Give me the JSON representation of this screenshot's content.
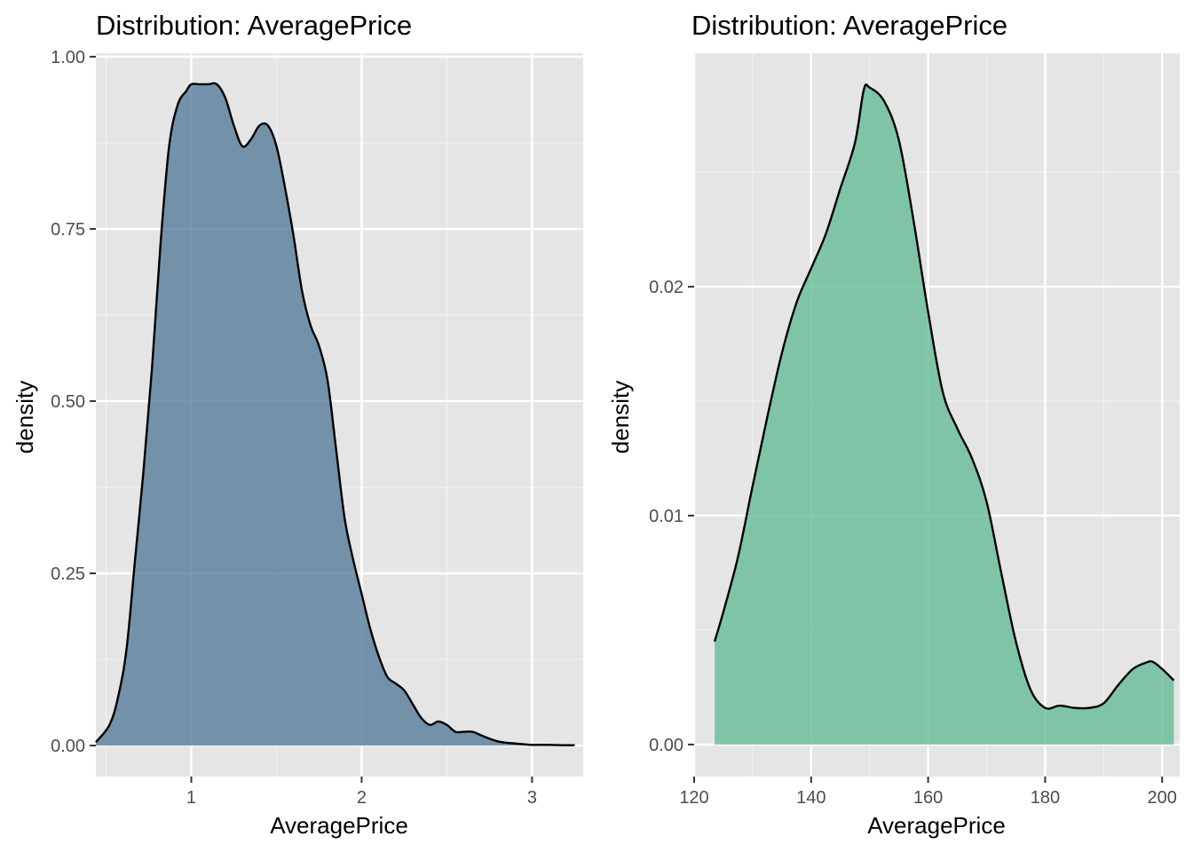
{
  "chart_data": [
    {
      "type": "area",
      "title": "Distribution: AveragePrice",
      "xlabel": "AveragePrice",
      "ylabel": "density",
      "xlim": [
        0.44,
        3.3
      ],
      "ylim": [
        -0.045,
        1.005
      ],
      "x_ticks": [
        1,
        2,
        3
      ],
      "x_tick_labels": [
        "1",
        "2",
        "3"
      ],
      "y_ticks": [
        0,
        0.25,
        0.5,
        0.75,
        1
      ],
      "y_tick_labels": [
        "0.00",
        "0.25",
        "0.50",
        "0.75",
        "1.00"
      ],
      "grid": true,
      "fill_color": "#4C7494",
      "fill_opacity": 0.75,
      "line_color": "#000000",
      "series": [
        {
          "x": [
            0.44,
            0.52,
            0.57,
            0.62,
            0.67,
            0.72,
            0.77,
            0.82,
            0.87,
            0.92,
            0.97,
            1.0,
            1.05,
            1.1,
            1.15,
            1.2,
            1.25,
            1.3,
            1.35,
            1.4,
            1.45,
            1.5,
            1.55,
            1.6,
            1.65,
            1.7,
            1.75,
            1.8,
            1.85,
            1.9,
            1.95,
            2.0,
            2.05,
            2.1,
            2.15,
            2.2,
            2.25,
            2.3,
            2.35,
            2.4,
            2.45,
            2.5,
            2.55,
            2.6,
            2.65,
            2.7,
            2.75,
            2.8,
            2.85,
            2.9,
            2.95,
            3.0,
            3.1,
            3.2,
            3.25
          ],
          "y": [
            0.005,
            0.03,
            0.07,
            0.14,
            0.27,
            0.4,
            0.55,
            0.73,
            0.87,
            0.93,
            0.95,
            0.96,
            0.96,
            0.96,
            0.96,
            0.94,
            0.9,
            0.87,
            0.88,
            0.9,
            0.9,
            0.87,
            0.81,
            0.74,
            0.66,
            0.61,
            0.58,
            0.53,
            0.43,
            0.33,
            0.27,
            0.22,
            0.17,
            0.13,
            0.1,
            0.09,
            0.08,
            0.06,
            0.04,
            0.03,
            0.035,
            0.03,
            0.02,
            0.02,
            0.02,
            0.015,
            0.01,
            0.006,
            0.004,
            0.003,
            0.002,
            0.001,
            0.001,
            0.0005,
            0.0005
          ]
        }
      ]
    },
    {
      "type": "area",
      "title": "Distribution: AveragePrice",
      "xlabel": "AveragePrice",
      "ylabel": "density",
      "xlim": [
        120,
        203
      ],
      "ylim": [
        -0.0014,
        0.0302
      ],
      "x_ticks": [
        120,
        140,
        160,
        180,
        200
      ],
      "x_tick_labels": [
        "120",
        "140",
        "160",
        "180",
        "200"
      ],
      "y_ticks": [
        0,
        0.01,
        0.02
      ],
      "y_tick_labels": [
        "0.00",
        "0.01",
        "0.02"
      ],
      "grid": true,
      "fill_color": "#66BB98",
      "fill_opacity": 0.8,
      "line_color": "#000000",
      "series": [
        {
          "x": [
            123.5,
            125,
            127.5,
            130,
            132.5,
            135,
            137.5,
            140,
            142.5,
            145,
            147.5,
            149,
            150,
            152.5,
            155,
            157.5,
            160,
            162.5,
            165,
            167.5,
            170,
            172.5,
            175,
            177.5,
            180,
            182.5,
            185,
            187.5,
            190,
            192.5,
            195,
            197.5,
            198.5,
            200,
            202
          ],
          "y": [
            0.0045,
            0.0058,
            0.0082,
            0.0113,
            0.0143,
            0.0171,
            0.0193,
            0.0208,
            0.0223,
            0.0243,
            0.0263,
            0.0286,
            0.0287,
            0.0281,
            0.0264,
            0.0229,
            0.0189,
            0.0154,
            0.0138,
            0.0125,
            0.0106,
            0.0075,
            0.0045,
            0.0024,
            0.0016,
            0.0017,
            0.0016,
            0.0016,
            0.0018,
            0.0026,
            0.0033,
            0.0036,
            0.0036,
            0.0033,
            0.0028
          ]
        }
      ]
    }
  ]
}
